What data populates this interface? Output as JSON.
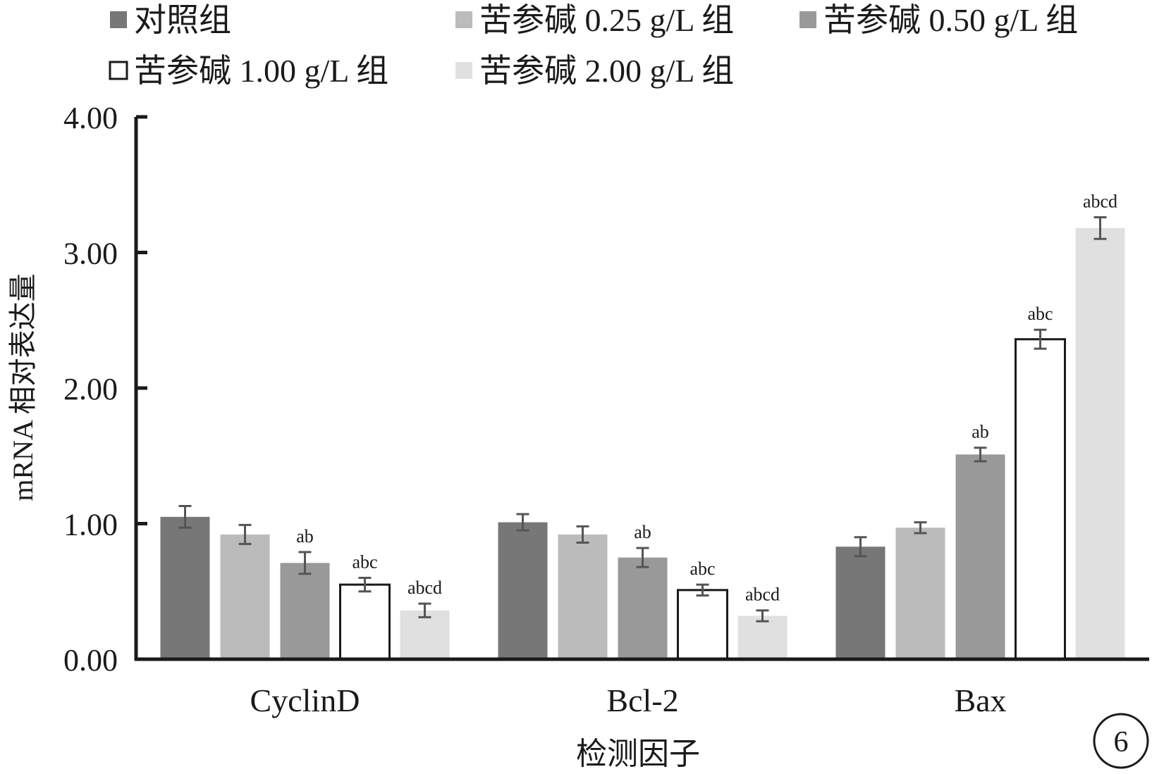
{
  "figure_number": "6",
  "colors": {
    "control": "#777777",
    "dose_025": "#bbbbbb",
    "dose_050": "#999999",
    "dose_100": "#ffffff",
    "dose_200": "#e0e0e0",
    "axis": "#1a1a1a",
    "error_bar": "#555555"
  },
  "chart_data": {
    "type": "bar",
    "xlabel": "检测因子",
    "ylabel": "mRNA 相对表达量",
    "ylim": [
      0,
      4
    ],
    "yticks": [
      "0.00",
      "1.00",
      "2.00",
      "3.00",
      "4.00"
    ],
    "grid": false,
    "legend_position": "top",
    "categories": [
      "CyclinD",
      "Bcl-2",
      "Bax"
    ],
    "series": [
      {
        "name": "对照组",
        "color_key": "control",
        "values": [
          1.05,
          1.01,
          0.83
        ],
        "errors": [
          0.08,
          0.06,
          0.07
        ],
        "labels": [
          "",
          "",
          ""
        ]
      },
      {
        "name": "苦参碱 0.25 g/L 组",
        "color_key": "dose_025",
        "values": [
          0.92,
          0.92,
          0.97
        ],
        "errors": [
          0.07,
          0.06,
          0.04
        ],
        "labels": [
          "",
          "",
          ""
        ]
      },
      {
        "name": "苦参碱 0.50 g/L 组",
        "color_key": "dose_050",
        "values": [
          0.71,
          0.75,
          1.51
        ],
        "errors": [
          0.08,
          0.07,
          0.05
        ],
        "labels": [
          "ab",
          "ab",
          "ab"
        ]
      },
      {
        "name": "苦参碱 1.00 g/L 组",
        "color_key": "dose_100",
        "values": [
          0.55,
          0.51,
          2.36
        ],
        "errors": [
          0.05,
          0.04,
          0.07
        ],
        "labels": [
          "abc",
          "abc",
          "abc"
        ]
      },
      {
        "name": "苦参碱 2.00 g/L 组",
        "color_key": "dose_200",
        "values": [
          0.36,
          0.32,
          3.18
        ],
        "errors": [
          0.05,
          0.04,
          0.08
        ],
        "labels": [
          "abcd",
          "abcd",
          "abcd"
        ]
      }
    ]
  }
}
